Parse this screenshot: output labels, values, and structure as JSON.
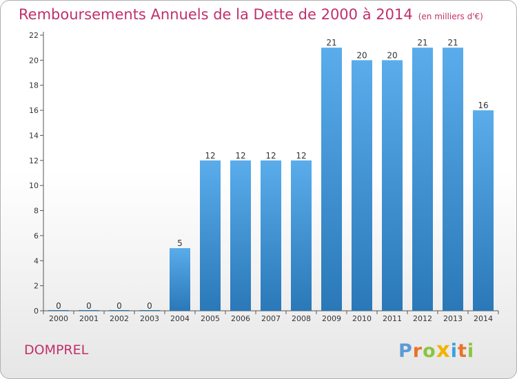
{
  "title": "Remboursements Annuels de la Dette de 2000 à 2014",
  "subtitle": "(en milliers d'€)",
  "commune": "DOMPREL",
  "logo_letters": [
    "P",
    "r",
    "o",
    "x",
    "i",
    "t",
    "i"
  ],
  "colors": {
    "title": "#c0306b",
    "bar_top": "#5aaceb",
    "bar_bottom": "#2a78b8",
    "logo": [
      "#5b9bd5",
      "#e8732a",
      "#8bc43f",
      "#f0b400",
      "#3aa0dc",
      "#e8732a",
      "#8bc43f"
    ]
  },
  "chart_data": {
    "type": "bar",
    "title": "Remboursements Annuels de la Dette de 2000 à 2014",
    "subtitle": "(en milliers d'€)",
    "categories": [
      "2000",
      "2001",
      "2002",
      "2003",
      "2004",
      "2005",
      "2006",
      "2007",
      "2008",
      "2009",
      "2010",
      "2011",
      "2012",
      "2013",
      "2014"
    ],
    "values": [
      0,
      0,
      0,
      0,
      5,
      12,
      12,
      12,
      12,
      21,
      20,
      20,
      21,
      21,
      16
    ],
    "xlabel": "",
    "ylabel": "",
    "ylim": [
      0,
      22
    ],
    "yticks": [
      0,
      2,
      4,
      6,
      8,
      10,
      12,
      14,
      16,
      18,
      20,
      22
    ],
    "grid": false
  }
}
